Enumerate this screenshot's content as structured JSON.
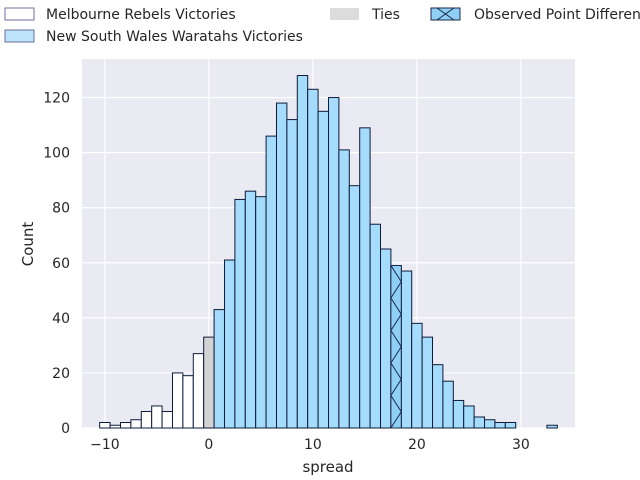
{
  "chart_data": {
    "type": "histogram",
    "xlabel": "spread",
    "ylabel": "Count",
    "xlim": [
      -12.2,
      35.2
    ],
    "ylim": [
      0,
      134
    ],
    "xticks": [
      -10,
      0,
      10,
      20,
      30
    ],
    "yticks": [
      0,
      20,
      40,
      60,
      80,
      100,
      120
    ],
    "grid": true,
    "legend_position": "top",
    "bin_width": 1,
    "observed_point_difference": 18,
    "series": [
      {
        "name": "Melbourne Rebels Victories",
        "color": "#ffffff",
        "edge": "#0d1b3a",
        "bins": [
          {
            "x": -10,
            "count": 2
          },
          {
            "x": -9,
            "count": 1
          },
          {
            "x": -8,
            "count": 2
          },
          {
            "x": -7,
            "count": 3
          },
          {
            "x": -6,
            "count": 6
          },
          {
            "x": -5,
            "count": 8
          },
          {
            "x": -4,
            "count": 6
          },
          {
            "x": -3,
            "count": 20
          },
          {
            "x": -2,
            "count": 19
          },
          {
            "x": -1,
            "count": 27
          }
        ]
      },
      {
        "name": "Ties",
        "color": "#d3d3d3",
        "edge": "#0d1b3a",
        "bins": [
          {
            "x": 0,
            "count": 33
          }
        ]
      },
      {
        "name": "New South Wales Waratahs Victories",
        "color": "#a6dcfb",
        "edge": "#0d1b3a",
        "bins": [
          {
            "x": 1,
            "count": 43
          },
          {
            "x": 2,
            "count": 61
          },
          {
            "x": 3,
            "count": 83
          },
          {
            "x": 4,
            "count": 86
          },
          {
            "x": 5,
            "count": 84
          },
          {
            "x": 6,
            "count": 106
          },
          {
            "x": 7,
            "count": 118
          },
          {
            "x": 8,
            "count": 112
          },
          {
            "x": 9,
            "count": 128
          },
          {
            "x": 10,
            "count": 123
          },
          {
            "x": 11,
            "count": 115
          },
          {
            "x": 12,
            "count": 120
          },
          {
            "x": 13,
            "count": 101
          },
          {
            "x": 14,
            "count": 88
          },
          {
            "x": 15,
            "count": 109
          },
          {
            "x": 16,
            "count": 74
          },
          {
            "x": 17,
            "count": 65
          },
          {
            "x": 18,
            "count": 59
          },
          {
            "x": 19,
            "count": 57
          },
          {
            "x": 20,
            "count": 38
          },
          {
            "x": 21,
            "count": 33
          },
          {
            "x": 22,
            "count": 23
          },
          {
            "x": 23,
            "count": 17
          },
          {
            "x": 24,
            "count": 10
          },
          {
            "x": 25,
            "count": 8
          },
          {
            "x": 26,
            "count": 4
          },
          {
            "x": 27,
            "count": 3
          },
          {
            "x": 28,
            "count": 2
          },
          {
            "x": 29,
            "count": 2
          },
          {
            "x": 33,
            "count": 1
          }
        ]
      }
    ],
    "legend": [
      {
        "label": "Melbourne Rebels Victories",
        "style": "rebels"
      },
      {
        "label": "New South Wales Waratahs Victories",
        "style": "waratahs"
      },
      {
        "label": "Ties",
        "style": "ties"
      },
      {
        "label": "Observed Point Difference",
        "style": "observed"
      }
    ]
  }
}
